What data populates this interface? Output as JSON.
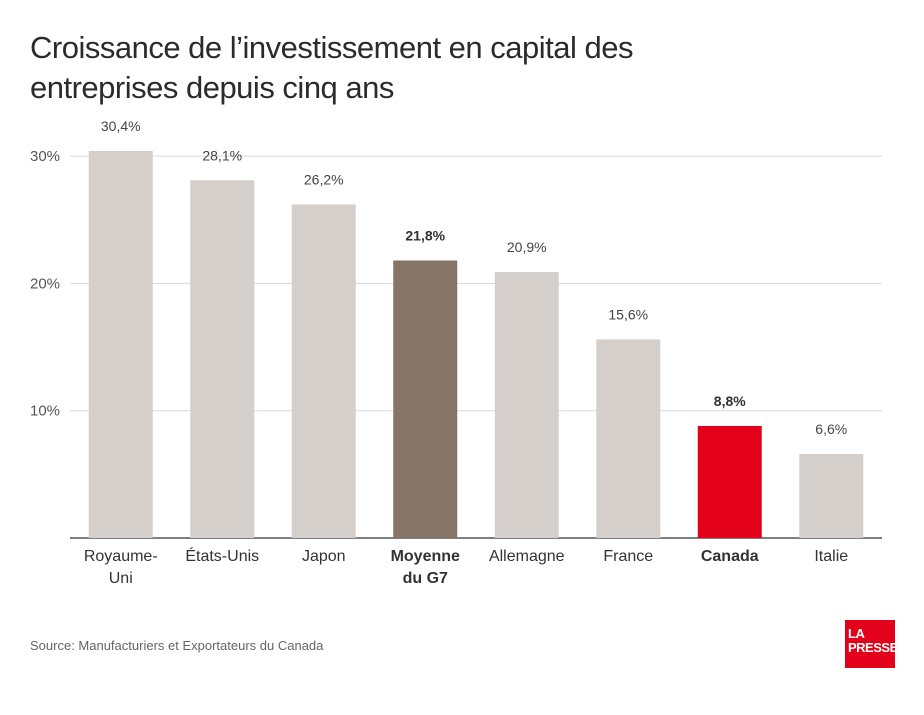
{
  "chart_data": {
    "type": "bar",
    "title": "Croissance de l’investissement en capital des entreprises depuis cinq ans",
    "categories": [
      [
        "Royaume-",
        "Uni"
      ],
      [
        "États-Unis"
      ],
      [
        "Japon"
      ],
      [
        "Moyenne",
        "du G7"
      ],
      [
        "Allemagne"
      ],
      [
        "France"
      ],
      [
        "Canada"
      ],
      [
        "Italie"
      ]
    ],
    "values": [
      30.4,
      28.1,
      26.2,
      21.8,
      20.9,
      15.6,
      8.8,
      6.6
    ],
    "value_labels": [
      "30,4%",
      "28,1%",
      "26,2%",
      "21,8%",
      "20,9%",
      "15,6%",
      "8,8%",
      "6,6%"
    ],
    "highlight": [
      false,
      false,
      false,
      true,
      false,
      false,
      true,
      false
    ],
    "bar_colors": [
      "#d4cfca",
      "#d4cfca",
      "#d4cfca",
      "#857566",
      "#d4cfca",
      "#d4cfca",
      "#e2001a",
      "#d4cfca"
    ],
    "ylim": [
      0,
      30
    ],
    "yticks": [
      10,
      20,
      30
    ],
    "ytick_labels": [
      "10%",
      "20%",
      "30%"
    ],
    "grid": true,
    "xlabel": "",
    "ylabel": ""
  },
  "source": "Source: Manufacturiers et Exportateurs du Canada",
  "logo": {
    "line1": "LA",
    "line2": "PRESSE",
    "color": "#e2001a"
  }
}
